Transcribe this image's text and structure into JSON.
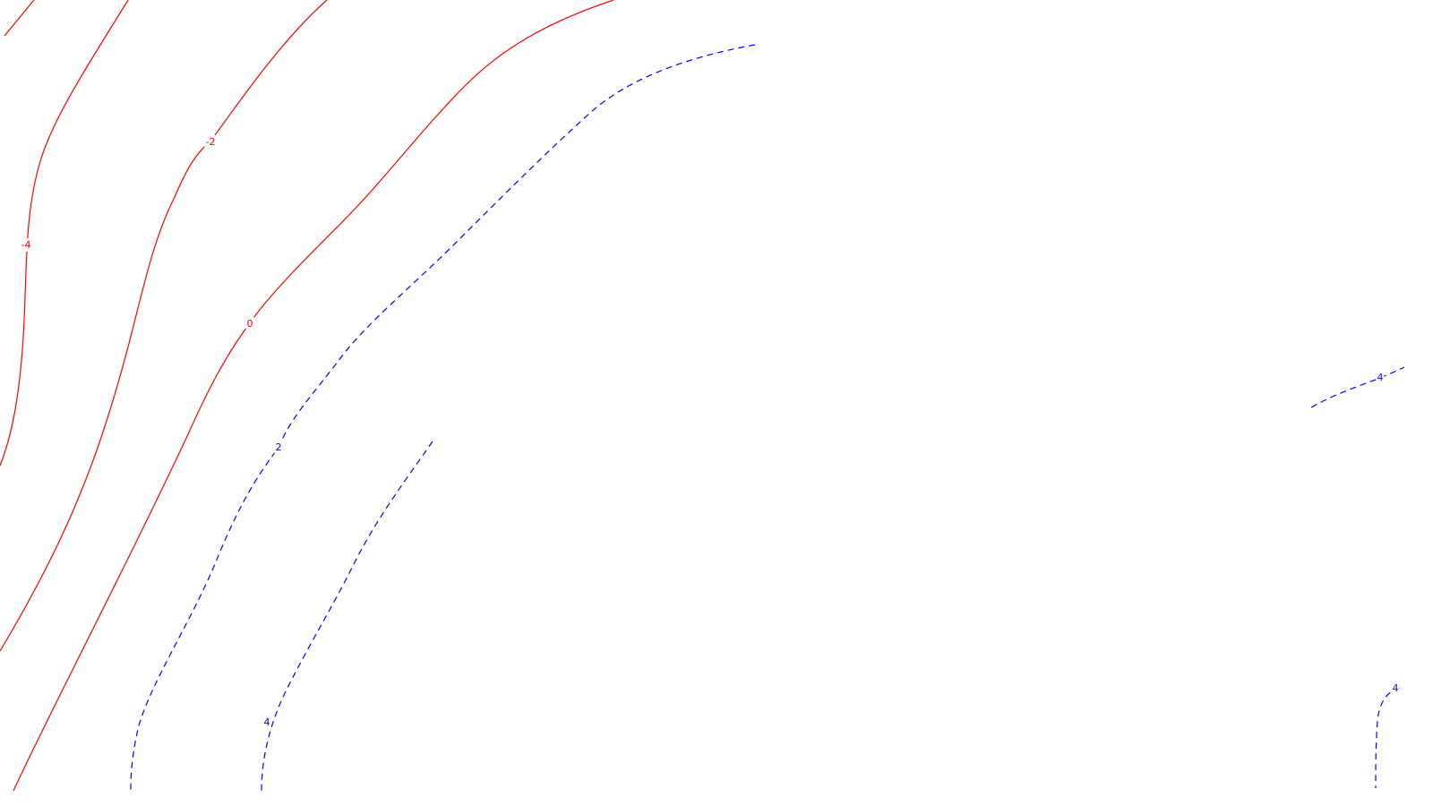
{
  "chart_data": {
    "type": "contour",
    "title": "",
    "xlabel": "",
    "ylabel": "",
    "grid": false,
    "legend": "none",
    "styles": {
      "negative": {
        "color": "#ff0000",
        "dash": "solid"
      },
      "zero": {
        "color": "#ff0000",
        "dash": "solid"
      },
      "positive": {
        "color": "#0000ff",
        "dash": "dashed"
      }
    },
    "levels": [
      {
        "level": -4,
        "label": "-4",
        "sign": "negative"
      },
      {
        "level": -2,
        "label": "-2",
        "sign": "negative"
      },
      {
        "level": 0,
        "label": "0",
        "sign": "zero"
      },
      {
        "level": 2,
        "label": "2",
        "sign": "positive"
      },
      {
        "level": 4,
        "label": "4",
        "sign": "positive"
      },
      {
        "level": 4,
        "label": "4",
        "sign": "positive"
      },
      {
        "level": 4,
        "label": "4",
        "sign": "positive"
      }
    ]
  }
}
